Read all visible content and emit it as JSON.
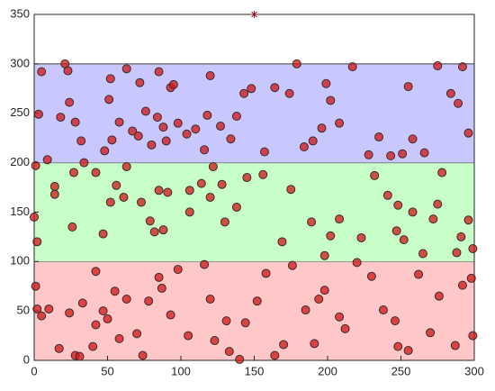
{
  "chart_data": {
    "type": "scatter",
    "xlim": [
      0,
      300
    ],
    "ylim": [
      0,
      350
    ],
    "xticks": [
      0,
      50,
      100,
      150,
      200,
      250,
      300
    ],
    "yticks": [
      0,
      50,
      100,
      150,
      200,
      250,
      300,
      350
    ],
    "bands": [
      {
        "range": [
          0,
          100
        ],
        "color": "#ffc8c8"
      },
      {
        "range": [
          100,
          200
        ],
        "color": "#c8ffc8"
      },
      {
        "range": [
          200,
          300
        ],
        "color": "#c8c8ff"
      }
    ],
    "marker": {
      "x": 150,
      "y": 350,
      "color": "#8b1a2a"
    },
    "series": [
      {
        "color": "#d01515",
        "x": [
          5,
          3,
          9,
          18,
          21,
          23,
          24,
          28,
          32,
          48,
          53,
          51,
          52,
          58,
          63,
          67,
          72,
          71,
          76,
          80,
          84,
          85,
          88,
          90,
          93,
          95,
          98,
          104,
          110,
          116,
          118,
          120,
          127,
          134,
          138,
          143,
          148,
          157,
          164,
          174,
          179,
          184,
          190,
          196,
          199,
          202,
          208,
          217,
          228,
          235,
          243,
          251,
          255,
          258,
          266,
          275,
          284,
          292,
          289,
          296,
          0,
          1,
          2,
          14,
          14,
          26,
          27,
          34,
          42,
          47,
          52,
          56,
          61,
          63,
          73,
          79,
          82,
          85,
          88,
          91,
          106,
          106,
          114,
          120,
          122,
          128,
          130,
          138,
          145,
          156,
          169,
          175,
          189,
          198,
          202,
          208,
          223,
          232,
          241,
          248,
          247,
          252,
          258,
          265,
          272,
          275,
          278,
          288,
          291,
          296,
          299,
          1,
          2,
          5,
          10,
          17,
          24,
          28,
          31,
          33,
          40,
          42,
          42,
          47,
          50,
          55,
          58,
          63,
          70,
          74,
          78,
          85,
          87,
          93,
          98,
          105,
          116,
          120,
          123,
          131,
          133,
          140,
          144,
          152,
          158,
          164,
          170,
          176,
          185,
          191,
          194,
          198,
          208,
          212,
          220,
          230,
          238,
          246,
          248,
          255,
          262,
          270,
          276,
          287,
          292,
          298,
          299
        ],
        "values": [
          292,
          249,
          203,
          246,
          300,
          293,
          261,
          241,
          222,
          212,
          223,
          264,
          285,
          241,
          295,
          232,
          281,
          227,
          252,
          218,
          246,
          292,
          236,
          222,
          276,
          279,
          240,
          229,
          234,
          213,
          248,
          288,
          237,
          224,
          247,
          270,
          275,
          211,
          276,
          270,
          300,
          216,
          222,
          235,
          280,
          263,
          240,
          297,
          208,
          226,
          207,
          209,
          277,
          224,
          210,
          298,
          270,
          297,
          260,
          230,
          145,
          197,
          120,
          168,
          176,
          135,
          190,
          200,
          190,
          128,
          160,
          177,
          165,
          196,
          160,
          141,
          130,
          172,
          132,
          170,
          150,
          172,
          179,
          165,
          196,
          178,
          140,
          155,
          185,
          188,
          120,
          173,
          140,
          106,
          126,
          143,
          124,
          187,
          167,
          157,
          131,
          122,
          150,
          108,
          143,
          158,
          190,
          109,
          125,
          142,
          113,
          75,
          52,
          45,
          52,
          12,
          48,
          5,
          4,
          58,
          14,
          36,
          90,
          50,
          42,
          70,
          22,
          62,
          27,
          5,
          60,
          84,
          73,
          46,
          92,
          25,
          97,
          62,
          20,
          40,
          9,
          1,
          38,
          60,
          88,
          5,
          16,
          96,
          51,
          17,
          62,
          71,
          44,
          32,
          99,
          85,
          51,
          40,
          14,
          10,
          87,
          28,
          65,
          15,
          76,
          83,
          25
        ]
      }
    ]
  }
}
